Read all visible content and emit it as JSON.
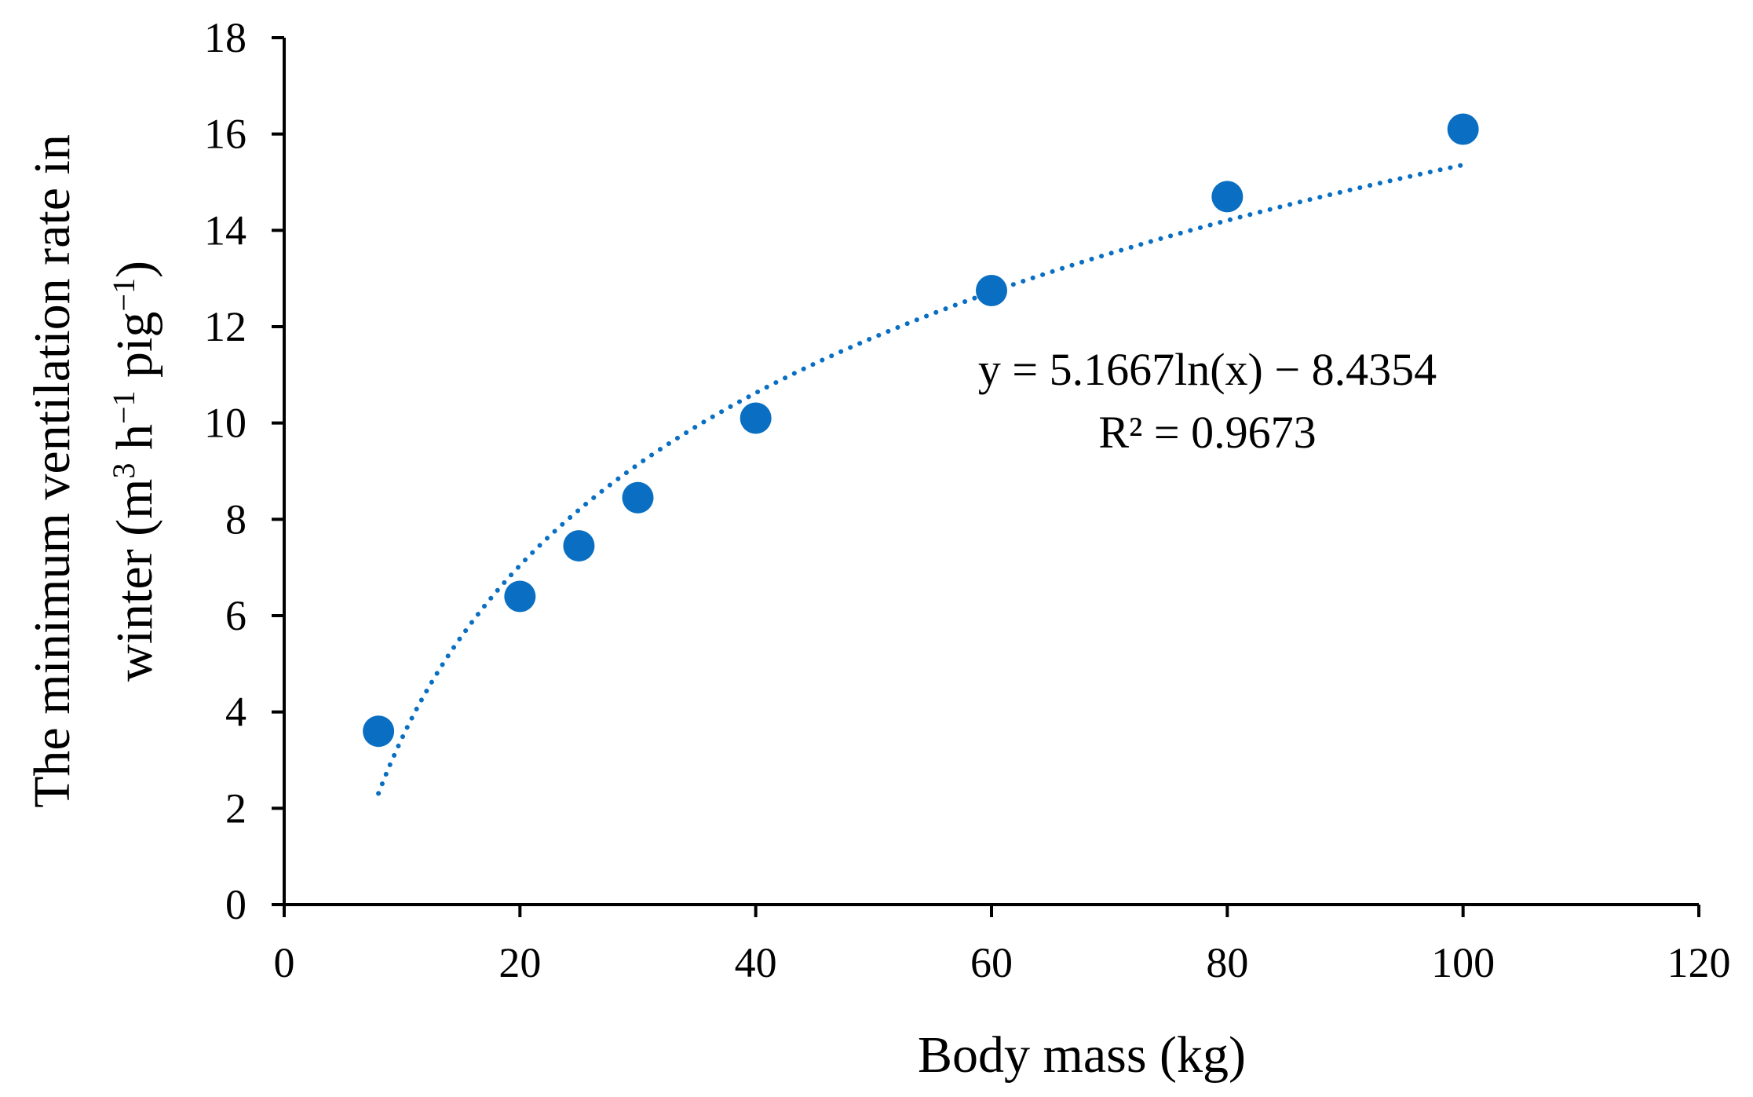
{
  "chart_data": {
    "type": "scatter",
    "title": "",
    "xlabel": "Body mass (kg)",
    "ylabel_line1": "The minimum ventilation rate in",
    "ylabel_line2_start": "winter (m",
    "ylabel_sup1": "3",
    "ylabel_mid1": " h",
    "ylabel_sup2": "−1",
    "ylabel_mid2": " pig",
    "ylabel_sup3": "−1",
    "ylabel_end": ")",
    "xlim": [
      0,
      120
    ],
    "ylim": [
      0,
      18
    ],
    "xticks": [
      "0",
      "20",
      "40",
      "60",
      "80",
      "100",
      "120"
    ],
    "yticks": [
      "0",
      "2",
      "4",
      "6",
      "8",
      "10",
      "12",
      "14",
      "16",
      "18"
    ],
    "series": [
      {
        "name": "Minimum ventilation rate",
        "x": [
          8,
          20,
          25,
          30,
          40,
          60,
          80,
          100
        ],
        "y": [
          3.6,
          6.4,
          7.45,
          8.45,
          10.1,
          12.75,
          14.7,
          16.1
        ]
      }
    ],
    "trendline": {
      "type": "logarithmic",
      "a": 5.1667,
      "b": -8.4354,
      "x_range": [
        8,
        100
      ],
      "equation": "y = 5.1667ln(x)  − 8.4354",
      "r2_label": "R² = 0.9673"
    },
    "colors": {
      "point": "#0a6fc2",
      "trend": "#0a6fc2",
      "axis": "#000000"
    },
    "grid": false,
    "legend": "none"
  }
}
